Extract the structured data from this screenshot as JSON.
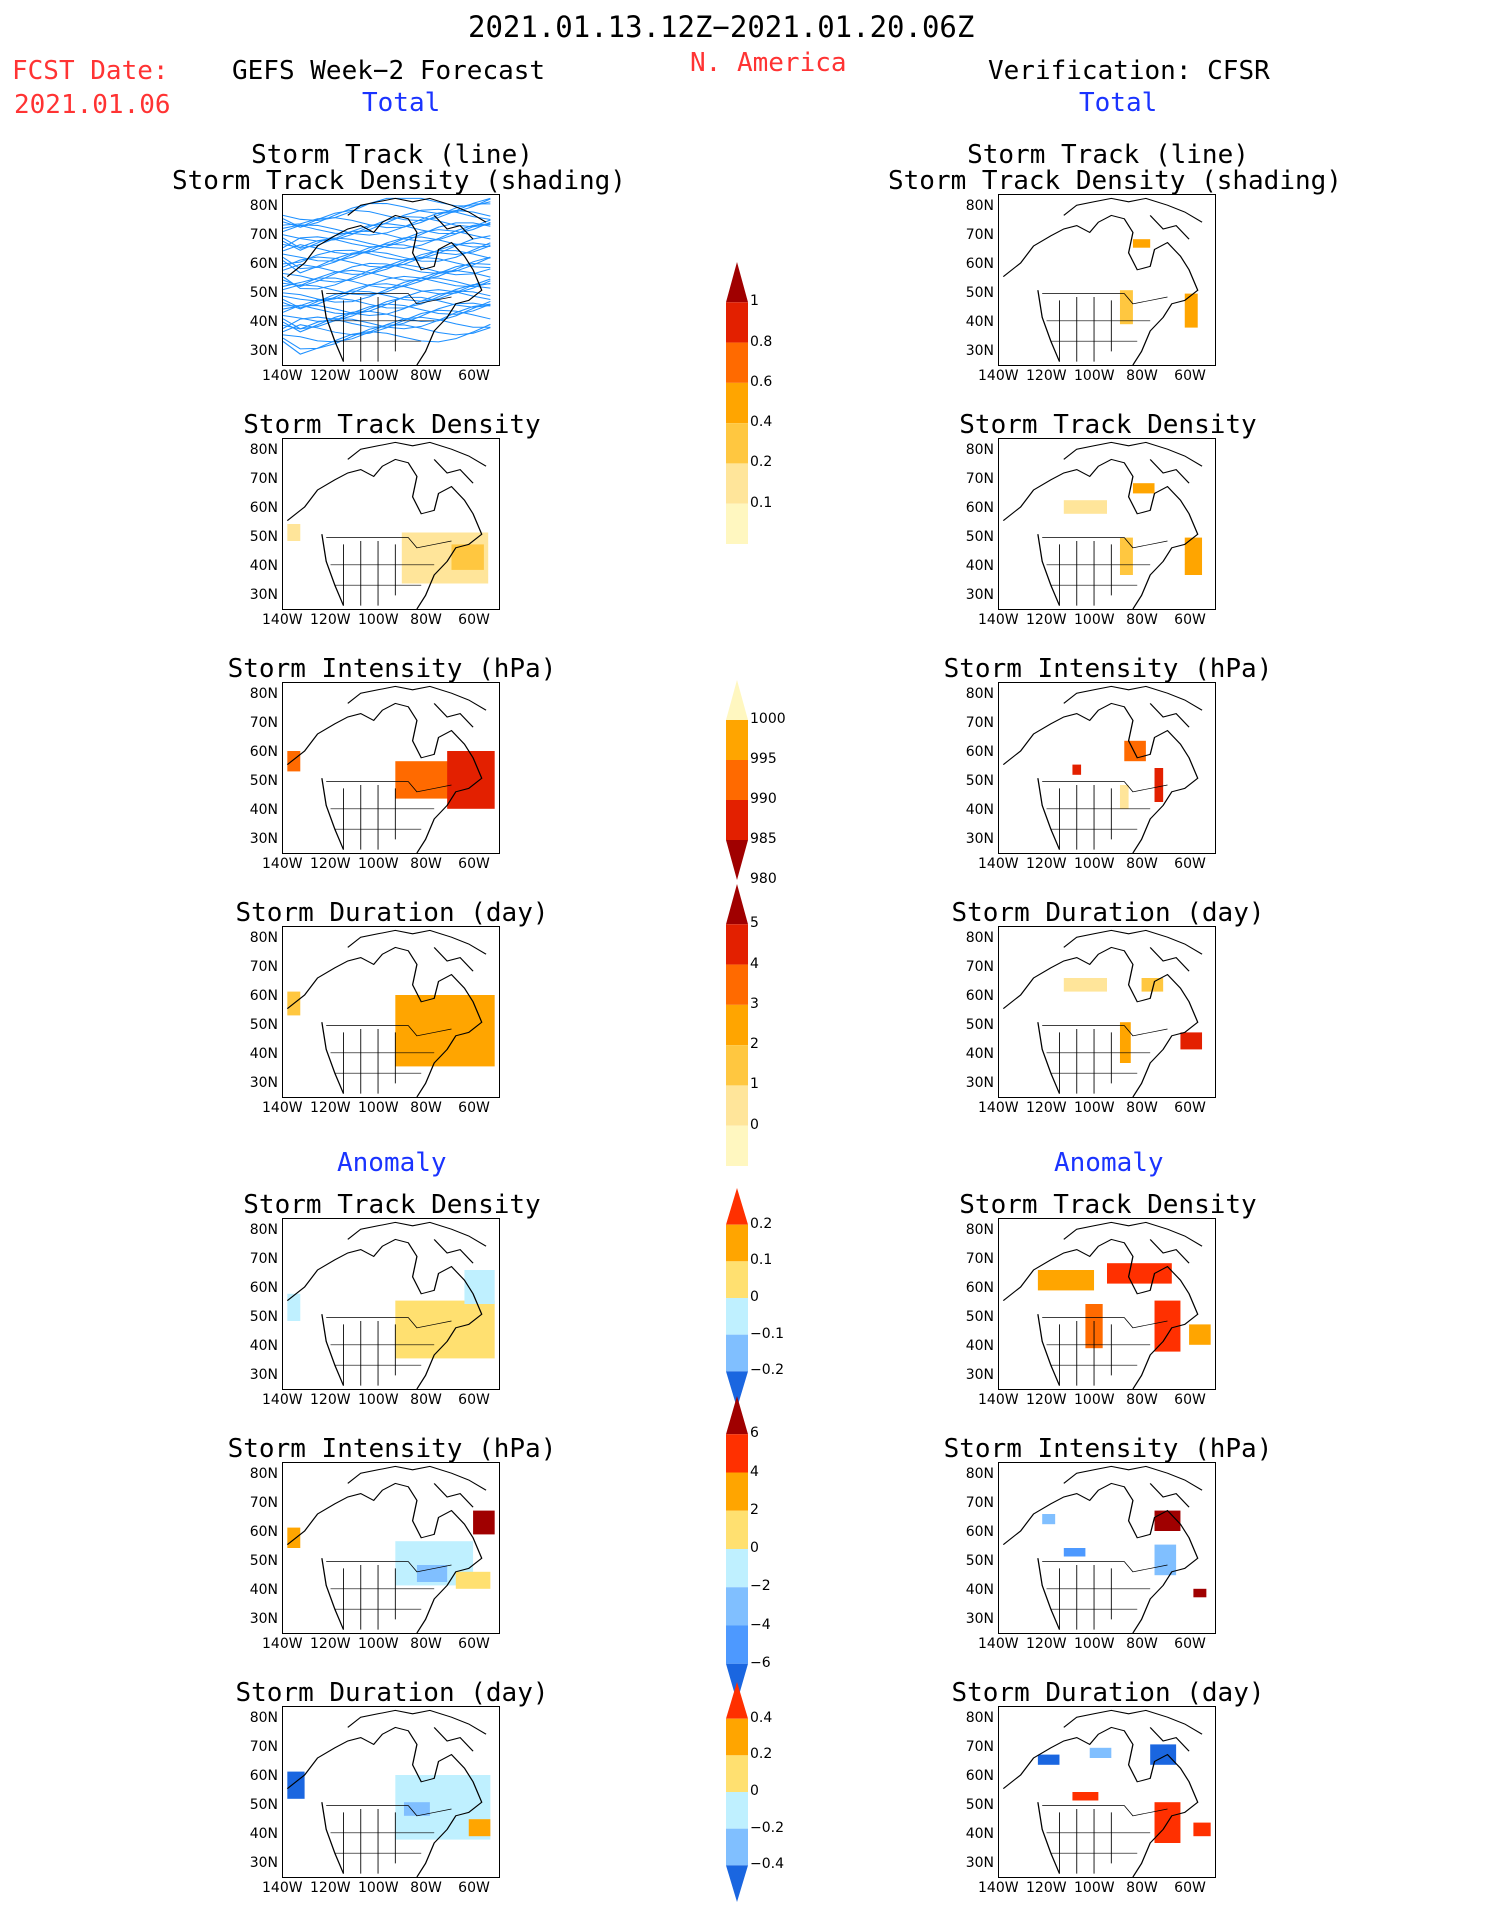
{
  "header": {
    "date_range": "2021.01.13.12Z−2021.01.20.06Z",
    "fcst_label": "FCST Date:",
    "fcst_date": "2021.01.06",
    "left_title": "GEFS Week−2 Forecast",
    "region": "N. America",
    "right_title": "Verification: CFSR",
    "total_label": "Total",
    "anomaly_label": "Anomaly"
  },
  "axes": {
    "lat_ticks": [
      "80N",
      "70N",
      "60N",
      "50N",
      "40N",
      "30N"
    ],
    "lon_ticks": [
      "140W",
      "120W",
      "100W",
      "80W",
      "60W"
    ]
  },
  "panels": [
    {
      "id": "track",
      "title1": "Storm Track (line)",
      "title2": "Storm Track Density (shading)"
    },
    {
      "id": "density",
      "title1": "Storm Track Density"
    },
    {
      "id": "intensity",
      "title1": "Storm Intensity (hPa)"
    },
    {
      "id": "duration",
      "title1": "Storm Duration (day)"
    },
    {
      "id": "a_density",
      "title1": "Storm Track Density"
    },
    {
      "id": "a_intensity",
      "title1": "Storm Intensity (hPa)"
    },
    {
      "id": "a_duration",
      "title1": "Storm Duration (day)"
    }
  ],
  "colorbars": [
    {
      "id": "cb_density",
      "labels": [
        "1",
        "0.8",
        "0.6",
        "0.4",
        "0.2",
        "0.1"
      ],
      "colors": [
        "#a00000",
        "#e32000",
        "#ff6a00",
        "#ffa500",
        "#ffc740",
        "#ffe59a",
        "#fff7c0"
      ]
    },
    {
      "id": "cb_intensity",
      "labels": [
        "1000",
        "995",
        "990",
        "985",
        "980"
      ],
      "colors": [
        "#fff7c0",
        "#ffa500",
        "#ff6a00",
        "#e32000",
        "#a00000"
      ]
    },
    {
      "id": "cb_duration",
      "labels": [
        "5",
        "4",
        "3",
        "2",
        "1",
        "0"
      ],
      "colors": [
        "#a00000",
        "#e32000",
        "#ff6a00",
        "#ffa500",
        "#ffc740",
        "#ffe59a",
        "#fff7c0"
      ]
    },
    {
      "id": "cb_a_density",
      "labels": [
        "0.2",
        "0.1",
        "0",
        "−0.1",
        "−0.2"
      ],
      "colors": [
        "#ff3000",
        "#ffa500",
        "#ffe070",
        "#bff0ff",
        "#80bfff",
        "#1a66e0"
      ]
    },
    {
      "id": "cb_a_intensity",
      "labels": [
        "6",
        "4",
        "2",
        "0",
        "−2",
        "−4",
        "−6"
      ],
      "colors": [
        "#a00000",
        "#ff3000",
        "#ffa500",
        "#ffe070",
        "#bff0ff",
        "#80bfff",
        "#4d99ff",
        "#1a66e0"
      ]
    },
    {
      "id": "cb_a_duration",
      "labels": [
        "0.4",
        "0.2",
        "0",
        "−0.2",
        "−0.4"
      ],
      "colors": [
        "#ff3000",
        "#ffa500",
        "#ffe070",
        "#bff0ff",
        "#80bfff",
        "#1a66e0"
      ]
    }
  ]
}
